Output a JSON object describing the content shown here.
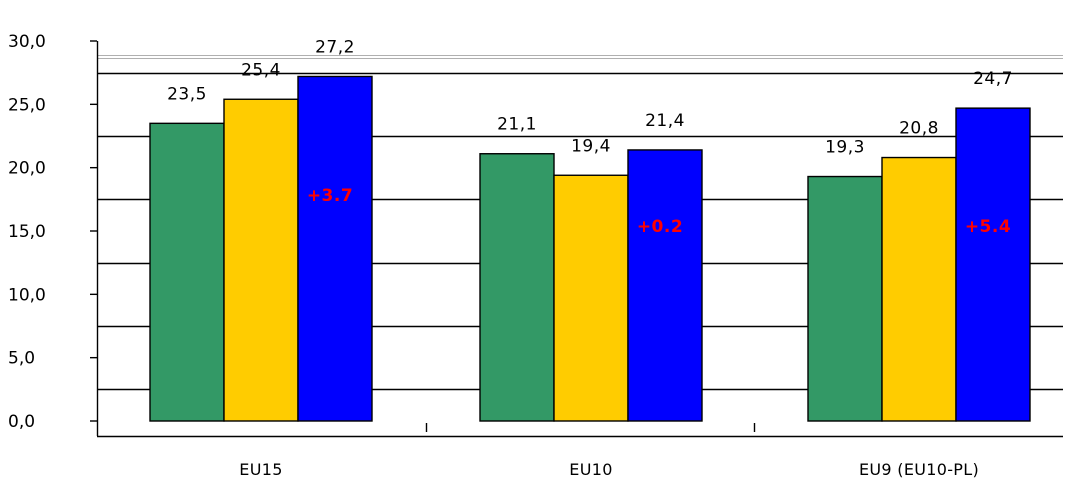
{
  "chart_data": {
    "type": "bar",
    "categories": [
      "EU15",
      "EU10",
      "EU9 (EU10-PL)"
    ],
    "series": [
      {
        "values": [
          23.5,
          21.1,
          19.3
        ],
        "labels": [
          "23,5",
          "21,1",
          "19,3"
        ],
        "color": "#339966"
      },
      {
        "values": [
          25.4,
          19.4,
          20.8
        ],
        "labels": [
          "25,4",
          "19,4",
          "20,8"
        ],
        "color": "#ffcc00"
      },
      {
        "values": [
          27.2,
          21.4,
          24.7
        ],
        "labels": [
          "27,2",
          "21,4",
          "24,7"
        ],
        "color": "#0000ff"
      }
    ],
    "differences": [
      "+3.7",
      "+0.2",
      "+5.4"
    ],
    "difference_color": "#ff0000",
    "yticks": [
      "0,0",
      "5,0",
      "10,0",
      "15,0",
      "20,0",
      "25,0",
      "30,0"
    ],
    "ylim": [
      0,
      30
    ],
    "grid": true,
    "legend": "none",
    "title": "",
    "xlabel": "",
    "ylabel": ""
  }
}
